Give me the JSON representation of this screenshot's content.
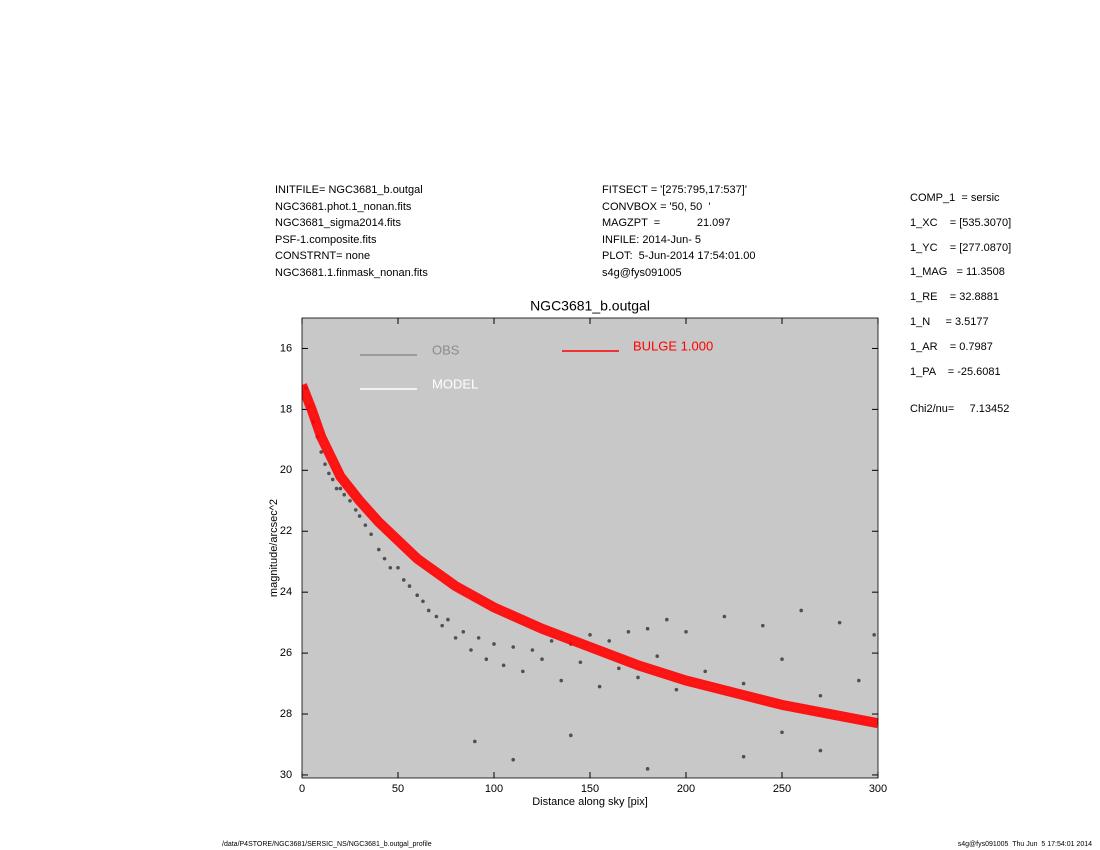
{
  "header": {
    "left": [
      "INITFILE= NGC3681_b.outgal",
      "NGC3681.phot.1_nonan.fits",
      "NGC3681_sigma2014.fits",
      "PSF-1.composite.fits",
      "CONSTRNT= none",
      "NGC3681.1.finmask_nonan.fits"
    ],
    "middle": [
      "FITSECT = '[275:795,17:537]'",
      "CONVBOX = '50, 50  '",
      "MAGZPT  =            21.097",
      "INFILE: 2014-Jun- 5",
      "PLOT:  5-Jun-2014 17:54:01.00",
      "s4g@fys091005"
    ],
    "params": [
      "COMP_1  = sersic",
      "1_XC    = [535.3070]",
      "1_YC    = [277.0870]",
      "1_MAG   = 11.3508",
      "1_RE    = 32.8881",
      "1_N     = 3.5177",
      "1_AR    = 0.7987",
      "1_PA    = -25.6081"
    ],
    "chi2": "Chi2/nu=     7.13452"
  },
  "footer": {
    "left": "/data/P4STORE/NGC3681/SERSIC_NS/NGC3681_b.outgal_profile",
    "right": "s4g@fys091005  Thu Jun  5 17:54:01 2014"
  },
  "chart_data": {
    "type": "scatter",
    "title": "NGC3681_b.outgal",
    "x_label": "Distance along sky [pix]",
    "y_label": "magnitude/arcsec^2",
    "xlim": [
      0,
      300
    ],
    "xticks": [
      0,
      50,
      100,
      150,
      200,
      250,
      300
    ],
    "ylim": [
      30.1,
      15
    ],
    "yticks": [
      16,
      18,
      20,
      22,
      24,
      26,
      28,
      30
    ],
    "background": "#c8c8c8",
    "series": [
      {
        "name": "OBS",
        "color": "#505050",
        "legend_color": "#8c8c8c",
        "x": [
          2,
          4,
          6,
          8,
          10,
          12,
          14,
          16,
          18,
          20,
          22,
          25,
          28,
          30,
          33,
          36,
          40,
          43,
          46,
          50,
          53,
          56,
          60,
          63,
          66,
          70,
          73,
          76,
          80,
          84,
          88,
          92,
          96,
          100,
          105,
          110,
          115,
          120,
          125,
          130,
          135,
          140,
          145,
          150,
          155,
          160,
          165,
          170,
          175,
          180,
          185,
          190,
          195,
          200,
          210,
          220,
          230,
          240,
          250,
          260,
          270,
          280,
          290,
          298,
          90,
          110,
          140,
          180,
          230,
          250,
          270
        ],
        "values": [
          17.3,
          17.9,
          18.4,
          18.9,
          19.4,
          19.8,
          20.1,
          20.3,
          20.6,
          20.6,
          20.8,
          21.0,
          21.3,
          21.5,
          21.8,
          22.1,
          22.6,
          22.9,
          23.2,
          23.2,
          23.6,
          23.8,
          24.1,
          24.3,
          24.6,
          24.8,
          25.1,
          24.9,
          25.5,
          25.3,
          25.9,
          25.5,
          26.2,
          25.7,
          26.4,
          25.8,
          26.6,
          25.9,
          26.2,
          25.6,
          26.9,
          25.7,
          26.3,
          25.4,
          27.1,
          25.6,
          26.5,
          25.3,
          26.8,
          25.2,
          26.1,
          24.9,
          27.2,
          25.3,
          26.6,
          24.8,
          27.0,
          25.1,
          26.2,
          24.6,
          27.4,
          25.0,
          26.9,
          25.4,
          28.9,
          29.5,
          28.7,
          29.8,
          29.4,
          28.6,
          29.2
        ]
      },
      {
        "name": "MODEL",
        "color": "#ffffff",
        "x": [
          0,
          5,
          10,
          20,
          30,
          40,
          50,
          60,
          80,
          100,
          125,
          150,
          175,
          200,
          225,
          250,
          275,
          300
        ],
        "values": [
          17.2,
          18.0,
          18.9,
          20.2,
          21.0,
          21.7,
          22.3,
          22.9,
          23.8,
          24.5,
          25.2,
          25.8,
          26.4,
          26.9,
          27.3,
          27.7,
          28.0,
          28.3
        ]
      },
      {
        "name": "BULGE  1.000",
        "color": "#ff0000",
        "x": [
          0,
          5,
          10,
          20,
          30,
          40,
          50,
          60,
          80,
          100,
          125,
          150,
          175,
          200,
          225,
          250,
          275,
          300
        ],
        "values": [
          17.2,
          18.0,
          18.9,
          20.2,
          21.0,
          21.7,
          22.3,
          22.9,
          23.8,
          24.5,
          25.2,
          25.8,
          26.4,
          26.9,
          27.3,
          27.7,
          28.0,
          28.3
        ]
      }
    ]
  }
}
